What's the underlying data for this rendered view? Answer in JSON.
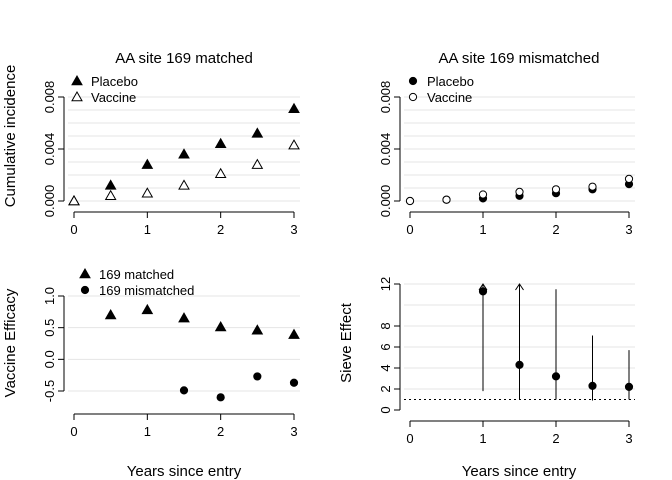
{
  "figure": {
    "xlabel_bottom_left": "Years since entry",
    "xlabel_bottom_right": "Years since entry",
    "ylabel_top": "Cumulative incidence",
    "ylabel_bottom_left": "Vaccine Efficacy",
    "ylabel_bottom_right": "Sieve Effect"
  },
  "chart_data": [
    {
      "type": "scatter",
      "panel": "top-left",
      "title": "AA site 169 matched",
      "ylabel": "Cumulative incidence",
      "xlabel": "",
      "x_ticks": [
        0,
        1,
        2,
        3
      ],
      "y_ticks": [
        "0.000",
        "0.004",
        "0.008"
      ],
      "y_tick_values": [
        0,
        0.004,
        0.008
      ],
      "xlim": [
        0,
        3
      ],
      "ylim": [
        0,
        0.009
      ],
      "grid": true,
      "legend_position": "top-left",
      "series": [
        {
          "name": "Placebo",
          "marker": "triangle-filled",
          "x": [
            0,
            0.5,
            1,
            1.5,
            2,
            2.5,
            3
          ],
          "y": [
            0.0,
            0.0012,
            0.0028,
            0.0036,
            0.0044,
            0.0052,
            0.0071
          ]
        },
        {
          "name": "Vaccine",
          "marker": "triangle-open",
          "x": [
            0,
            0.5,
            1,
            1.5,
            2,
            2.5,
            3
          ],
          "y": [
            0.0,
            0.0004,
            0.0006,
            0.0012,
            0.0021,
            0.0028,
            0.0043
          ]
        }
      ]
    },
    {
      "type": "scatter",
      "panel": "top-right",
      "title": "AA site 169 mismatched",
      "ylabel": "",
      "xlabel": "",
      "x_ticks": [
        0,
        1,
        2,
        3
      ],
      "y_ticks": [
        "0.000",
        "0.004",
        "0.008"
      ],
      "y_tick_values": [
        0,
        0.004,
        0.008
      ],
      "xlim": [
        0,
        3
      ],
      "ylim": [
        0,
        0.009
      ],
      "grid": true,
      "legend_position": "top-left",
      "series": [
        {
          "name": "Placebo",
          "marker": "circle-filled",
          "x": [
            0,
            0.5,
            1,
            1.5,
            2,
            2.5,
            3
          ],
          "y": [
            0.0,
            0.0001,
            0.0002,
            0.0004,
            0.0006,
            0.0009,
            0.0013
          ]
        },
        {
          "name": "Vaccine",
          "marker": "circle-open",
          "x": [
            0,
            0.5,
            1,
            1.5,
            2,
            2.5,
            3
          ],
          "y": [
            0.0,
            0.0001,
            0.0005,
            0.0007,
            0.0009,
            0.0011,
            0.0017
          ]
        }
      ]
    },
    {
      "type": "scatter",
      "panel": "bottom-left",
      "title": "",
      "ylabel": "Vaccine Efficacy",
      "xlabel": "Years since entry",
      "x_ticks": [
        0,
        1,
        2,
        3
      ],
      "y_ticks": [
        "-0.5",
        "0.0",
        "0.5",
        "1.0"
      ],
      "y_tick_values": [
        -0.5,
        0,
        0.5,
        1.0
      ],
      "xlim": [
        0,
        3
      ],
      "ylim": [
        -0.7,
        1.2
      ],
      "grid": true,
      "legend_position": "top-left",
      "series": [
        {
          "name": "169 matched",
          "marker": "triangle-filled",
          "x": [
            0.5,
            1,
            1.5,
            2,
            2.5,
            3
          ],
          "y": [
            0.7,
            0.78,
            0.65,
            0.51,
            0.46,
            0.39
          ]
        },
        {
          "name": "169 mismatched",
          "marker": "circle-filled",
          "x": [
            1.5,
            2,
            2.5,
            3
          ],
          "y": [
            -0.49,
            -0.6,
            -0.27,
            -0.37
          ]
        }
      ]
    },
    {
      "type": "scatter",
      "panel": "bottom-right",
      "title": "",
      "ylabel": "Sieve Effect",
      "xlabel": "Years since entry",
      "x_ticks": [
        0,
        1,
        2,
        3
      ],
      "y_ticks": [
        "0",
        "2",
        "4",
        "6",
        "8",
        "12"
      ],
      "y_tick_values": [
        0,
        2,
        4,
        6,
        8,
        12
      ],
      "xlim": [
        0,
        3
      ],
      "ylim": [
        0,
        12
      ],
      "grid": true,
      "reference_line": 1,
      "series": [
        {
          "name": "",
          "marker": "circle-filled",
          "x": [
            1,
            1.5,
            2,
            2.5,
            3
          ],
          "y": [
            11.3,
            4.3,
            3.2,
            2.3,
            2.2
          ],
          "lower": [
            1.8,
            1.0,
            1.0,
            0.9,
            1.0
          ],
          "upper": [
            12,
            12,
            11.5,
            7.1,
            5.7
          ],
          "upper_arrow": [
            true,
            true,
            false,
            false,
            false
          ]
        }
      ]
    }
  ]
}
